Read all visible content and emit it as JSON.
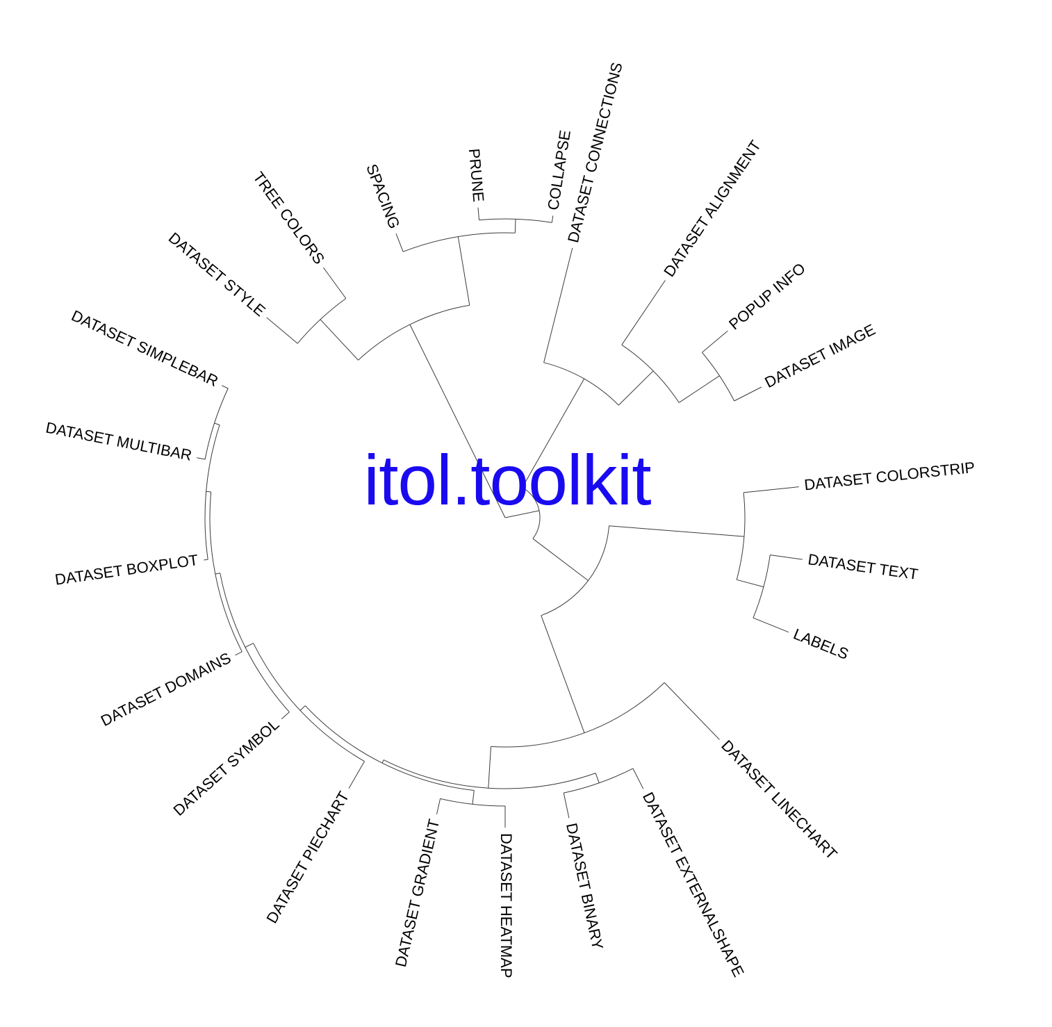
{
  "title": "itol.toolkit",
  "title_color": "#1a0af0",
  "branch_color": "#3a3a3a",
  "label_color": "#000000",
  "tree": {
    "layout": "circular",
    "leaves": [
      "DATASET CONNECTIONS",
      "DATASET ALIGNMENT",
      "POPUP INFO",
      "DATASET IMAGE",
      "DATASET COLORSTRIP",
      "DATASET TEXT",
      "LABELS",
      "DATASET LINECHART",
      "DATASET EXTERNALSHAPE",
      "DATASET BINARY",
      "DATASET HEATMAP",
      "DATASET GRADIENT",
      "DATASET PIECHART",
      "DATASET SYMBOL",
      "DATASET DOMAINS",
      "DATASET BOXPLOT",
      "DATASET MULTIBAR",
      "DATASET SIMPLEBAR",
      "DATASET STYLE",
      "TREE COLORS",
      "SPACING",
      "PRUNE",
      "COLLAPSE"
    ]
  }
}
